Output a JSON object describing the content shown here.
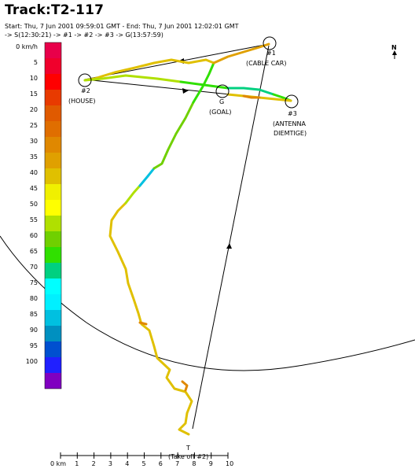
{
  "header": {
    "title": "Track:T2-117",
    "timing": "Start: Thu, 7 Jun 2001 09:59:01 GMT  - End: Thu, 7 Jun 2001 12:02:01 GMT",
    "route": " -> S(12:30:21) -> #1 -> #2 -> #3 -> G(13:57:59)"
  },
  "speed_legend": {
    "unit_label": "0 km/h",
    "items": [
      {
        "label": "0 km/h",
        "color": "#e8004a"
      },
      {
        "label": "5",
        "color": "#f0002c"
      },
      {
        "label": "10",
        "color": "#ff0000"
      },
      {
        "label": "15",
        "color": "#e83a00"
      },
      {
        "label": "20",
        "color": "#e05a00"
      },
      {
        "label": "25",
        "color": "#e06e00"
      },
      {
        "label": "30",
        "color": "#e08800"
      },
      {
        "label": "35",
        "color": "#e0a000"
      },
      {
        "label": "40",
        "color": "#e0c000"
      },
      {
        "label": "45",
        "color": "#f0f000"
      },
      {
        "label": "50",
        "color": "#ffff00"
      },
      {
        "label": "55",
        "color": "#b0e000"
      },
      {
        "label": "60",
        "color": "#70d000"
      },
      {
        "label": "65",
        "color": "#30e000"
      },
      {
        "label": "70",
        "color": "#00d080"
      },
      {
        "label": "75",
        "color": "#00ffff"
      },
      {
        "label": "80",
        "color": "#00f0ff"
      },
      {
        "label": "85",
        "color": "#00c0e0"
      },
      {
        "label": "90",
        "color": "#0090c0"
      },
      {
        "label": "95",
        "color": "#0050d0"
      },
      {
        "label": "100",
        "color": "#2020ff"
      },
      {
        "label": "",
        "color": "#8000c0"
      }
    ]
  },
  "waypoints": {
    "cable_car": {
      "id": "#1",
      "name": "(CABLE CAR)"
    },
    "house": {
      "id": "#2",
      "name": "(HOUSE)"
    },
    "goal": {
      "id": "G",
      "name": "(GOAL)"
    },
    "antenna": {
      "id": "#3",
      "name": "(ANTENNA",
      "name2": "DIEMTIGE)"
    },
    "takeoff": {
      "id": "T",
      "name": "(Take off #2)"
    }
  },
  "north_label": "N",
  "scale": {
    "unit": "0 km",
    "ticks": [
      "1",
      "2",
      "3",
      "4",
      "5",
      "6",
      "7",
      "8",
      "9",
      "10"
    ]
  }
}
